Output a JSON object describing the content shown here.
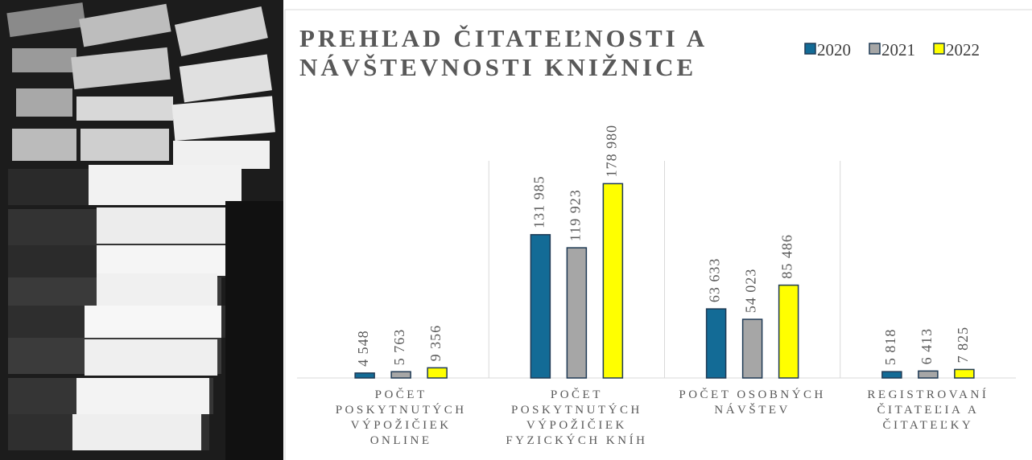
{
  "chart_data": {
    "type": "bar",
    "title": "PREHĽAD ČITATEĽNOSTI A NÁVŠTEVNOSTI KNIŽNICE",
    "categories": [
      "POČET POSKYTNUTÝCH VÝPOŽIČIEK ONLINE",
      "POČET POSKYTNUTÝCH VÝPOŽIČIEK FYZICKÝCH KNÍH",
      "POČET OSOBNÝCH NÁVŠTEV",
      "REGISTROVANÍ ČITATEĽIA A ČITATEĽKY"
    ],
    "series": [
      {
        "name": "2020",
        "color": "#136b96",
        "values": [
          4548,
          131985,
          63633,
          5818
        ],
        "value_labels": [
          "4 548",
          "131 985",
          "63 633",
          "5 818"
        ]
      },
      {
        "name": "2021",
        "color": "#a6a6a6",
        "values": [
          5763,
          119923,
          54023,
          6413
        ],
        "value_labels": [
          "5 763",
          "119 923",
          "54 023",
          "6 413"
        ]
      },
      {
        "name": "2022",
        "color": "#ffff00",
        "values": [
          9356,
          178980,
          85486,
          7825
        ],
        "value_labels": [
          "9 356",
          "178 980",
          "85 486",
          "7 825"
        ]
      }
    ],
    "ylim": [
      0,
      200000
    ],
    "legend": "top-right"
  }
}
